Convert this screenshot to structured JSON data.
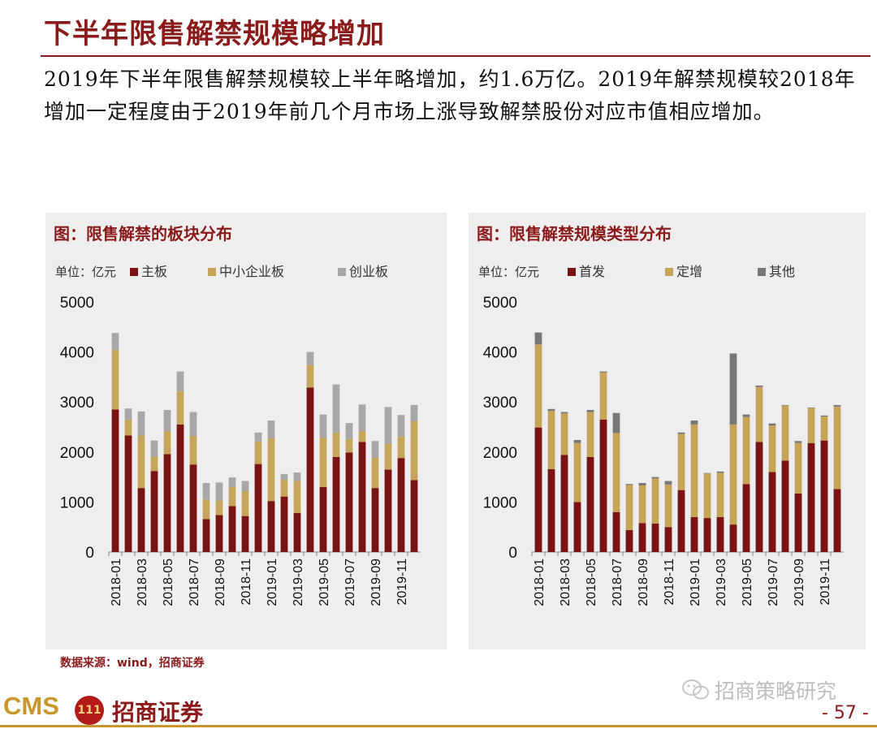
{
  "page": {
    "title": "下半年限售解禁规模略增加",
    "summary": "2019年下半年限售解禁规模较上半年略增加，约1.6万亿。2019年解禁规模较2018年增加一定程度由于2019年前几个月市场上涨导致解禁股份对应市值相应增加。",
    "source": "数据来源：wind，招商证券",
    "brand": "CMS",
    "brand_logo_text": "111",
    "company": "招商证券",
    "wechat": "招商策略研究",
    "page_number": "- 57 -"
  },
  "colors": {
    "series_dark": "#7a1414",
    "series_gold": "#c6a55a",
    "series_gray": "#a7a7a7",
    "series_darkgray": "#777777",
    "accent": "#8b1a1a"
  },
  "chart_data": [
    {
      "type": "bar",
      "stacked": true,
      "title": "图：限售解禁的板块分布",
      "unit_label": "单位：亿元",
      "ylim": [
        0,
        5000
      ],
      "yticks": [
        0,
        1000,
        2000,
        3000,
        4000,
        5000
      ],
      "categories": [
        "2018-01",
        "2018-02",
        "2018-03",
        "2018-04",
        "2018-05",
        "2018-06",
        "2018-07",
        "2018-08",
        "2018-09",
        "2018-10",
        "2018-11",
        "2018-12",
        "2019-01",
        "2019-02",
        "2019-03",
        "2019-04",
        "2019-05",
        "2019-06",
        "2019-07",
        "2019-08",
        "2019-09",
        "2019-10",
        "2019-11",
        "2019-12"
      ],
      "xtick_labels": [
        "2018-01",
        "2018-03",
        "2018-05",
        "2018-07",
        "2018-09",
        "2018-11",
        "2019-01",
        "2019-03",
        "2019-05",
        "2019-07",
        "2019-09",
        "2019-11"
      ],
      "series": [
        {
          "name": "主板",
          "color": "#7a1414",
          "values": [
            2850,
            2330,
            1280,
            1620,
            1960,
            2550,
            1750,
            660,
            740,
            920,
            720,
            1760,
            1020,
            1110,
            780,
            3290,
            1300,
            1900,
            1990,
            2200,
            1280,
            1650,
            1880,
            1440
          ]
        },
        {
          "name": "中小企业板",
          "color": "#c6a55a",
          "values": [
            1190,
            320,
            1050,
            280,
            450,
            660,
            570,
            390,
            290,
            380,
            500,
            450,
            1250,
            340,
            640,
            450,
            980,
            490,
            270,
            210,
            610,
            510,
            420,
            1180
          ]
        },
        {
          "name": "创业板",
          "color": "#a7a7a7",
          "values": [
            340,
            220,
            480,
            330,
            430,
            400,
            480,
            330,
            360,
            190,
            200,
            180,
            360,
            110,
            170,
            260,
            470,
            960,
            320,
            540,
            330,
            740,
            440,
            320
          ]
        }
      ]
    },
    {
      "type": "bar",
      "stacked": true,
      "title": "图：限售解禁规模类型分布",
      "unit_label": "单位：亿元",
      "ylim": [
        0,
        5000
      ],
      "yticks": [
        0,
        1000,
        2000,
        3000,
        4000,
        5000
      ],
      "categories": [
        "2018-01",
        "2018-02",
        "2018-03",
        "2018-04",
        "2018-05",
        "2018-06",
        "2018-07",
        "2018-08",
        "2018-09",
        "2018-10",
        "2018-11",
        "2018-12",
        "2019-01",
        "2019-02",
        "2019-03",
        "2019-04",
        "2019-05",
        "2019-06",
        "2019-07",
        "2019-08",
        "2019-09",
        "2019-10",
        "2019-11",
        "2019-12"
      ],
      "xtick_labels": [
        "2018-01",
        "2018-03",
        "2018-05",
        "2018-07",
        "2018-09",
        "2018-11",
        "2019-01",
        "2019-03",
        "2019-05",
        "2019-07",
        "2019-09",
        "2019-11"
      ],
      "series": [
        {
          "name": "首发",
          "color": "#7a1414",
          "values": [
            2490,
            1660,
            1940,
            1000,
            1900,
            2650,
            800,
            440,
            580,
            570,
            500,
            1240,
            700,
            680,
            700,
            550,
            1360,
            2200,
            1600,
            1830,
            1170,
            2180,
            2230,
            1260
          ]
        },
        {
          "name": "定增",
          "color": "#c6a55a",
          "values": [
            1660,
            1160,
            830,
            1180,
            900,
            940,
            1580,
            900,
            750,
            900,
            850,
            1120,
            1850,
            890,
            880,
            2000,
            1340,
            1100,
            930,
            1100,
            1010,
            700,
            480,
            1650
          ]
        },
        {
          "name": "其他",
          "color": "#777777",
          "values": [
            240,
            40,
            30,
            60,
            40,
            20,
            400,
            20,
            50,
            30,
            70,
            30,
            80,
            10,
            30,
            1420,
            50,
            30,
            40,
            10,
            40,
            10,
            20,
            30
          ]
        }
      ]
    }
  ]
}
